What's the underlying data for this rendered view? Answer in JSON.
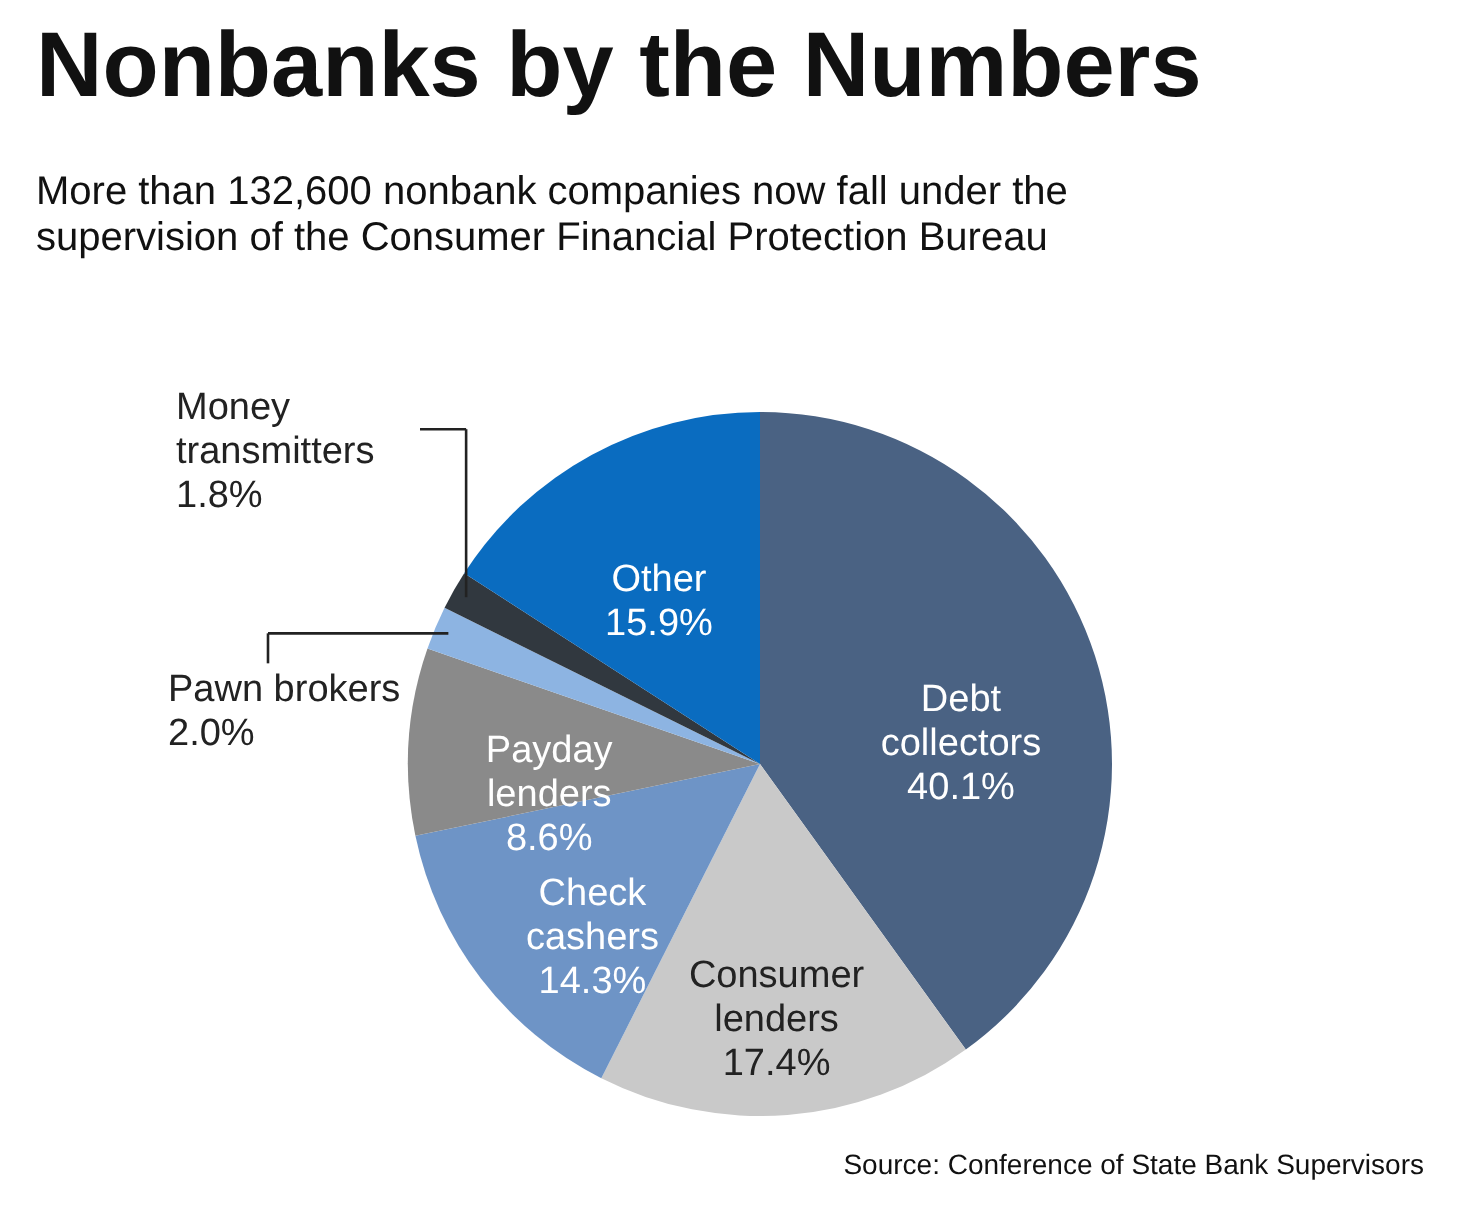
{
  "chart_data": {
    "type": "pie",
    "title": "Nonbanks by the Numbers",
    "subtitle": "More than 132,600 nonbank companies now fall under the supervision of the Consumer Financial Protection Bureau",
    "categories": [
      "Debt collectors",
      "Consumer lenders",
      "Check cashers",
      "Payday lenders",
      "Pawn brokers",
      "Money transmitters",
      "Other"
    ],
    "values": [
      40.1,
      17.4,
      14.3,
      8.6,
      2.0,
      1.8,
      15.9
    ],
    "colors": [
      "#4a6283",
      "#c9c9c9",
      "#6e94c6",
      "#8a8a8a",
      "#8db4e2",
      "#31383f",
      "#0a6cc0"
    ],
    "value_labels": [
      "40.1%",
      "17.4%",
      "14.3%",
      "8.6%",
      "2.0%",
      "1.8%",
      "15.9%"
    ],
    "annotations": [
      "Source: Conference of State Bank Supervisors"
    ]
  }
}
